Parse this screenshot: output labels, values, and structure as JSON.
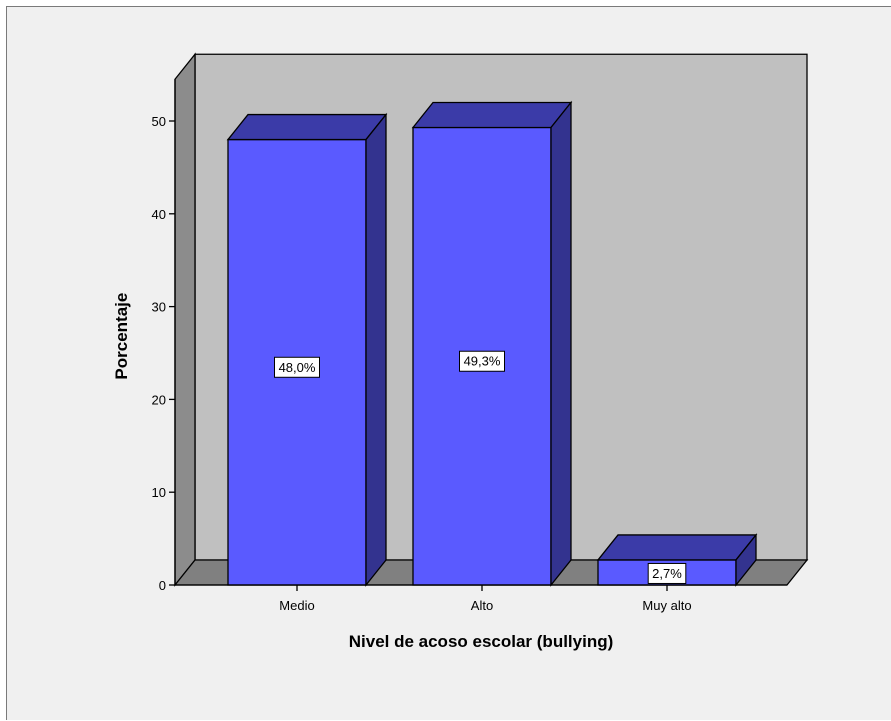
{
  "chart_data": {
    "type": "bar",
    "categories": [
      "Medio",
      "Alto",
      "Muy alto"
    ],
    "values": [
      48.0,
      49.3,
      2.7
    ],
    "value_labels": [
      "48,0%",
      "49,3%",
      "2,7%"
    ],
    "xlabel": "Nivel de acoso escolar (bullying)",
    "ylabel": "Porcentaje",
    "ylim": [
      0,
      50
    ],
    "yticks": [
      "0",
      "10",
      "20",
      "30",
      "40",
      "50"
    ],
    "grid": false,
    "three_d": true,
    "colors": {
      "bar_front": "#5a5aff",
      "bar_top": "#3b3ba8",
      "bar_side": "#33338f",
      "back_wall": "#c0c0c0",
      "side_wall": "#8c8c8c",
      "floor": "#808080",
      "frame_bg": "#f0f0f0"
    }
  }
}
